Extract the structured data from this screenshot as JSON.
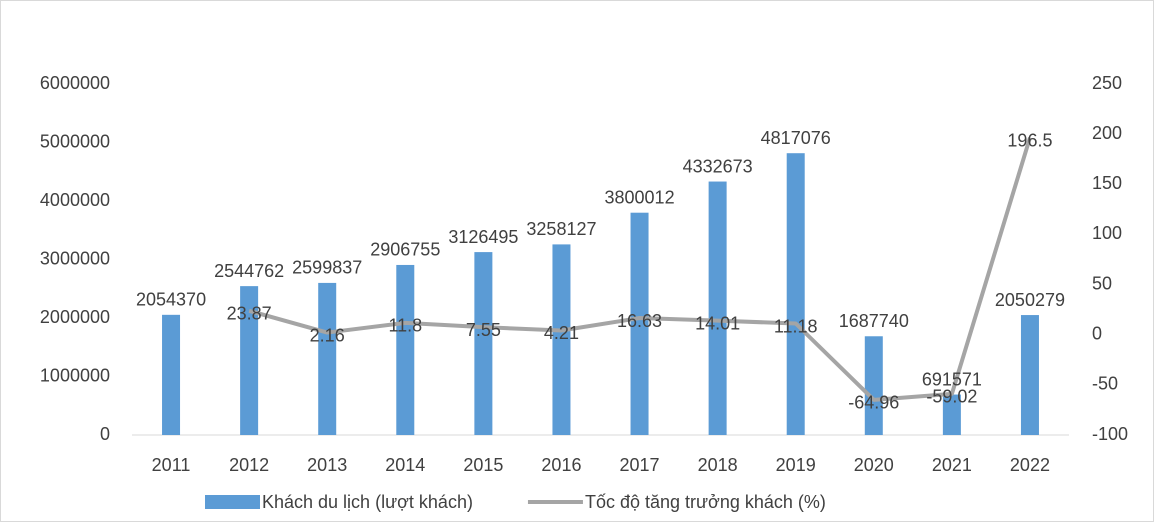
{
  "chart_data": {
    "type": "bar-line",
    "categories": [
      "2011",
      "2012",
      "2013",
      "2014",
      "2015",
      "2016",
      "2017",
      "2018",
      "2019",
      "2020",
      "2021",
      "2022"
    ],
    "series": [
      {
        "name": "Khách du lịch (lượt khách)",
        "type": "bar",
        "color": "#5b9bd5",
        "values": [
          2054370,
          2544762,
          2599837,
          2906755,
          3126495,
          3258127,
          3800012,
          4332673,
          4817076,
          1687740,
          691571,
          2050279
        ]
      },
      {
        "name": "Tốc độ tăng trưởng khách (%)",
        "type": "line",
        "color": "#a5a5a5",
        "axis": "y2",
        "values": [
          null,
          23.87,
          2.16,
          11.8,
          7.55,
          4.21,
          16.63,
          14.01,
          11.18,
          -64.96,
          -59.02,
          196.5
        ]
      }
    ],
    "ylim": [
      0,
      6000000
    ],
    "yticks": [
      0,
      1000000,
      2000000,
      3000000,
      4000000,
      5000000,
      6000000
    ],
    "y2lim": [
      -100,
      250
    ],
    "y2ticks": [
      -100,
      -50,
      0,
      50,
      100,
      150,
      200,
      250
    ],
    "legend": "bottom"
  }
}
